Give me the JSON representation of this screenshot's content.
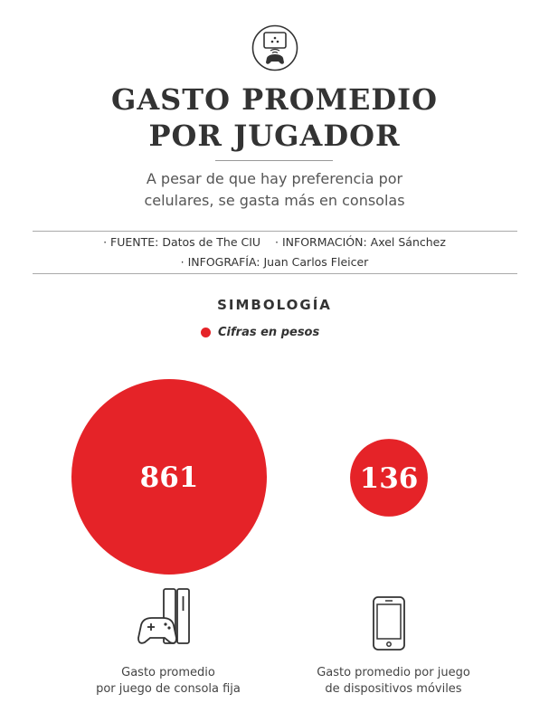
{
  "header": {
    "title_line1": "GASTO PROMEDIO",
    "title_line2": "POR JUGADOR",
    "subtitle_line1": "A pesar de que hay preferencia por",
    "subtitle_line2": "celulares, se gasta más en consolas"
  },
  "credits": {
    "fuente_label": "· FUENTE:",
    "fuente_value": "Datos de The CIU",
    "informacion_label": "· INFORMACIÓN:",
    "informacion_value": "Axel Sánchez",
    "infografia_label": "· INFOGRAFÍA:",
    "infografia_value": "Juan Carlos Fleicer"
  },
  "legend": {
    "title": "SIMBOLOGÍA",
    "item": "Cifras en pesos",
    "color": "#e52328"
  },
  "chart_data": {
    "type": "bubble",
    "title": "GASTO PROMEDIO POR JUGADOR",
    "unit": "pesos",
    "categories": [
      "Gasto promedio por juego de consola fija",
      "Gasto promedio por juego de dispositivos móviles"
    ],
    "values": [
      861,
      136
    ],
    "color": "#e52328"
  },
  "captions": {
    "console_line1": "Gasto promedio",
    "console_line2": "por juego de consola fija",
    "mobile_line1": "Gasto promedio por juego",
    "mobile_line2": "de dispositivos móviles"
  },
  "icons": {
    "header": "tv-gamepad-icon",
    "console": "console-gamepad-icon",
    "mobile": "smartphone-icon"
  }
}
